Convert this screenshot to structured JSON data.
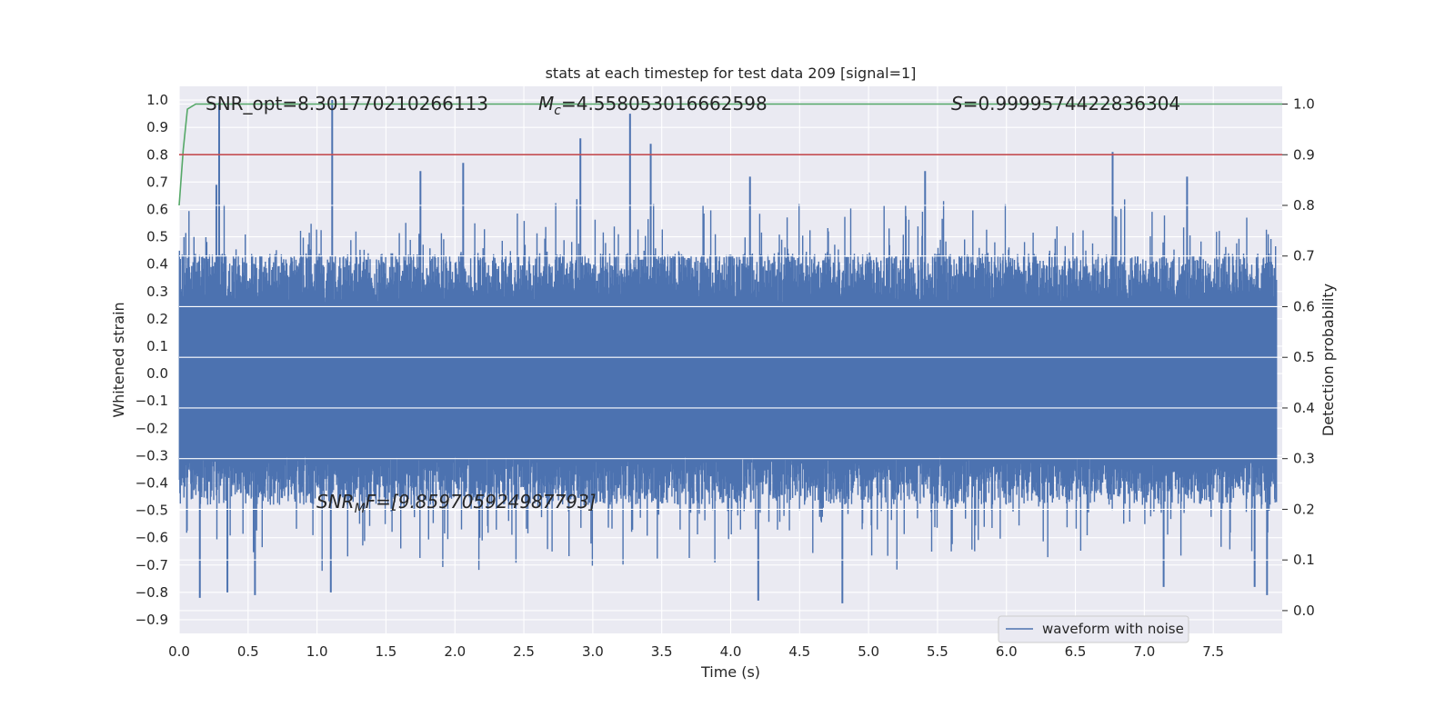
{
  "chart_data": {
    "type": "line",
    "title": "stats at each timestep for test data 209 [signal=1]",
    "xlabel": "Time (s)",
    "ylabel_left": "Whitened strain",
    "ylabel_right": "Detection probability",
    "xlim": [
      0.0,
      8.0
    ],
    "ylim_left": [
      -0.95,
      1.05
    ],
    "ylim_right": [
      -0.045,
      1.035
    ],
    "xticks": [
      "0.0",
      "0.5",
      "1.0",
      "1.5",
      "2.0",
      "2.5",
      "3.0",
      "3.5",
      "4.0",
      "4.5",
      "5.0",
      "5.5",
      "6.0",
      "6.5",
      "7.0",
      "7.5"
    ],
    "yticks_left": [
      "1.0",
      "0.9",
      "0.8",
      "0.7",
      "0.6",
      "0.5",
      "0.4",
      "0.3",
      "0.2",
      "0.1",
      "0.0",
      "−0.1",
      "−0.2",
      "−0.3",
      "−0.4",
      "−0.5",
      "−0.6",
      "−0.7",
      "−0.8",
      "−0.9"
    ],
    "yticks_right": [
      "1.0",
      "0.9",
      "0.8",
      "0.7",
      "0.6",
      "0.5",
      "0.4",
      "0.3",
      "0.2",
      "0.1",
      "0.0"
    ],
    "grid": true,
    "legend_position": "lower-right",
    "annotations": {
      "snr_opt": "SNR_opt=8.301770210266113",
      "mc_symbol": "M",
      "mc_subscript": "c",
      "mc_value": "=4.558053016662598",
      "s_symbol": "S",
      "s_value": "=0.9999574422836304",
      "snr_mf_symbol": "SNR",
      "snr_mf_subscript": "M",
      "snr_mf_value": "F=[9.859705924987793]"
    },
    "series": [
      {
        "name": "waveform with noise",
        "axis": "left",
        "color": "#4c72b0",
        "amplitude_band": [
          -0.3,
          0.26
        ],
        "positive_peaks": [
          {
            "x": 0.29,
            "y": 0.99
          },
          {
            "x": 1.11,
            "y": 1.0
          },
          {
            "x": 2.91,
            "y": 0.86
          },
          {
            "x": 3.27,
            "y": 0.95
          },
          {
            "x": 3.42,
            "y": 0.84
          },
          {
            "x": 6.77,
            "y": 0.81
          },
          {
            "x": 0.27,
            "y": 0.69
          },
          {
            "x": 1.75,
            "y": 0.74
          },
          {
            "x": 2.06,
            "y": 0.77
          },
          {
            "x": 5.41,
            "y": 0.74
          },
          {
            "x": 4.14,
            "y": 0.72
          },
          {
            "x": 7.31,
            "y": 0.72
          }
        ],
        "negative_peaks": [
          {
            "x": 0.15,
            "y": -0.82
          },
          {
            "x": 0.35,
            "y": -0.8
          },
          {
            "x": 0.55,
            "y": -0.81
          },
          {
            "x": 1.1,
            "y": -0.8
          },
          {
            "x": 4.2,
            "y": -0.83
          },
          {
            "x": 4.81,
            "y": -0.84
          },
          {
            "x": 7.89,
            "y": -0.81
          },
          {
            "x": 7.14,
            "y": -0.78
          },
          {
            "x": 7.8,
            "y": -0.78
          }
        ]
      },
      {
        "name": "",
        "axis": "right",
        "color": "#55a868",
        "x": [
          0.0,
          0.03,
          0.06,
          0.12,
          0.2,
          8.0
        ],
        "y": [
          0.8,
          0.91,
          0.99,
          1.0,
          1.0,
          1.0
        ]
      },
      {
        "name": "",
        "axis": "right",
        "color": "#c44e52",
        "x": [
          0.0,
          8.0
        ],
        "y": [
          0.9,
          0.9
        ]
      }
    ]
  }
}
